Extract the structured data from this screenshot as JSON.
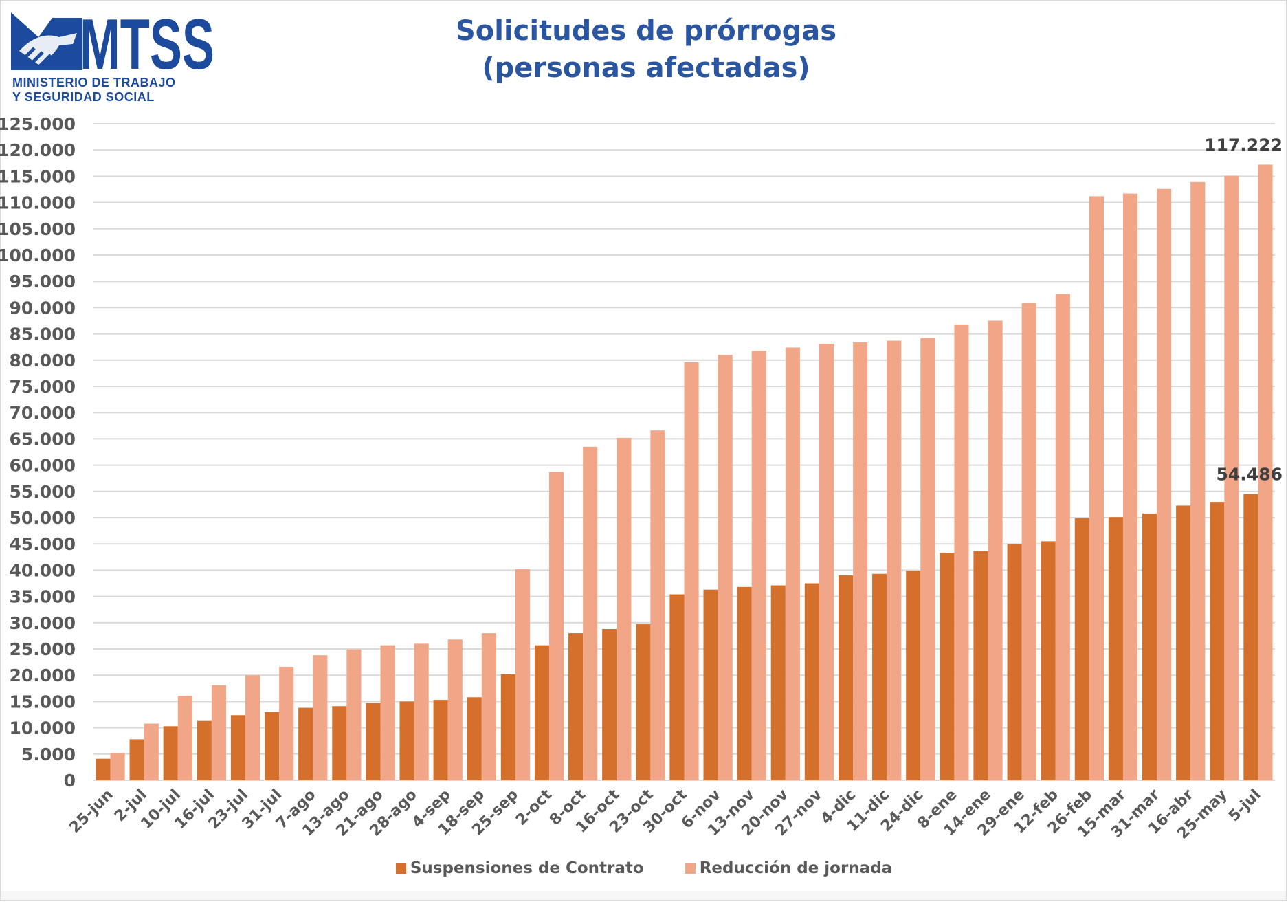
{
  "logo": {
    "acronym": "MTSS",
    "line1": "MINISTERIO DE TRABAJO",
    "line2": "Y SEGURIDAD SOCIAL",
    "color": "#1c4a9c"
  },
  "chart_data": {
    "type": "bar",
    "title": "Solicitudes de prórrogas (personas afectadas)",
    "title_lines": [
      "Solicitudes de prórrogas",
      "(personas afectadas)"
    ],
    "xlabel": "",
    "ylabel": "",
    "ylim": [
      0,
      125000
    ],
    "ytick_step": 5000,
    "yticks": [
      "0",
      "5.000",
      "10.000",
      "15.000",
      "20.000",
      "25.000",
      "30.000",
      "35.000",
      "40.000",
      "45.000",
      "50.000",
      "55.000",
      "60.000",
      "65.000",
      "70.000",
      "75.000",
      "80.000",
      "85.000",
      "90.000",
      "95.000",
      "100.000",
      "105.000",
      "110.000",
      "115.000",
      "120.000",
      "125.000"
    ],
    "grid": true,
    "legend_position": "bottom",
    "categories": [
      "25-jun",
      "2-jul",
      "10-jul",
      "16-jul",
      "23-jul",
      "31-jul",
      "7-ago",
      "13-ago",
      "21-ago",
      "28-ago",
      "4-sep",
      "18-sep",
      "25-sep",
      "2-oct",
      "8-oct",
      "16-oct",
      "23-oct",
      "30-oct",
      "6-nov",
      "13-nov",
      "20-nov",
      "27-nov",
      "4-dic",
      "11-dic",
      "24-dic",
      "8-ene",
      "14-ene",
      "29-ene",
      "12-feb",
      "26-feb",
      "15-mar",
      "31-mar",
      "16-abr",
      "25-may",
      "5-jul"
    ],
    "series": [
      {
        "name": "Suspensiones de Contrato",
        "color": "#d4702b",
        "values": [
          4100,
          7800,
          10300,
          11300,
          12400,
          13000,
          13800,
          14100,
          14700,
          15000,
          15300,
          15800,
          20200,
          25700,
          28000,
          28800,
          29700,
          35400,
          36300,
          36800,
          37100,
          37500,
          39000,
          39300,
          39900,
          43300,
          43600,
          44900,
          45500,
          49900,
          50100,
          50800,
          52300,
          53000,
          54486
        ]
      },
      {
        "name": "Reducción de jornada",
        "color": "#f0a687",
        "values": [
          5200,
          10800,
          16100,
          18100,
          20000,
          21600,
          23800,
          24900,
          25700,
          26000,
          26800,
          28000,
          40200,
          58700,
          63500,
          65200,
          66600,
          79600,
          81000,
          81800,
          82400,
          83100,
          83400,
          83700,
          84200,
          86800,
          87500,
          90900,
          92600,
          111200,
          111700,
          112600,
          113900,
          115100,
          117222
        ]
      }
    ],
    "annotations": [
      {
        "series": "Reducción de jornada",
        "category": "5-jul",
        "label": "117.222"
      },
      {
        "series": "Suspensiones de Contrato",
        "category": "5-jul",
        "label": "54.486"
      }
    ],
    "colors": {
      "grid": "#d9d9d9",
      "tick_text": "#595959",
      "annotation_text": "#404040"
    }
  }
}
